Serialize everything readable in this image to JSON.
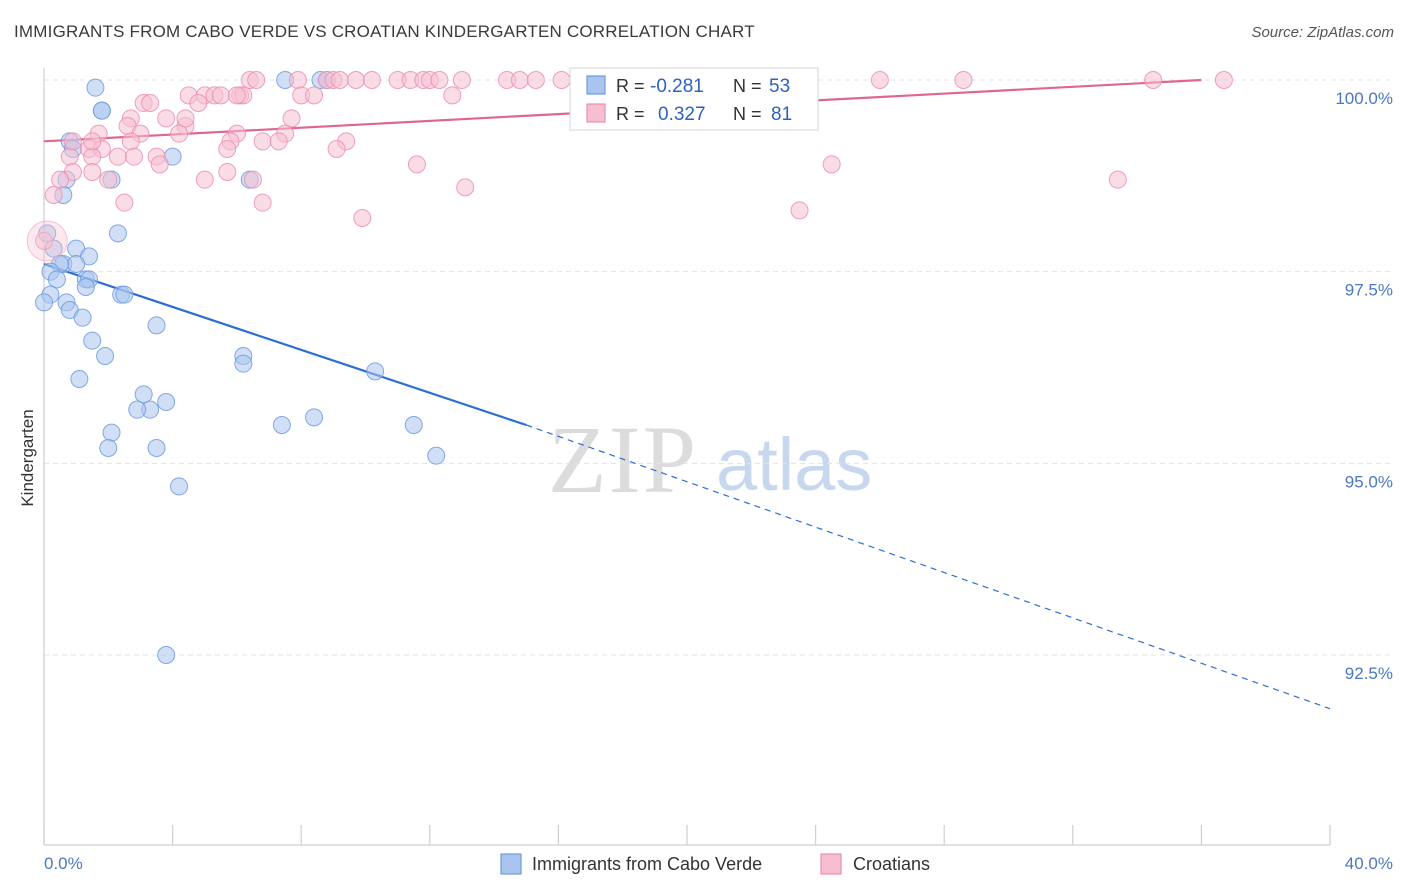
{
  "header": {
    "title": "IMMIGRANTS FROM CABO VERDE VS CROATIAN KINDERGARTEN CORRELATION CHART",
    "source": "Source: ZipAtlas.com"
  },
  "watermark": {
    "zip": "ZIP",
    "atlas": "atlas"
  },
  "colors": {
    "blue": "#6e9be0",
    "blue_fill": "#a9c4ee",
    "blue_line": "#2b6fd1",
    "pink": "#ec8fae",
    "pink_fill": "#f6bfd1",
    "pink_line": "#e06690",
    "tick_text": "#4a78c2",
    "grid": "#e3e3e3"
  },
  "legend_box": {
    "rows": [
      {
        "r_label": "R = ",
        "r_value": "-0.281",
        "n_label": "N = ",
        "n_value": "53"
      },
      {
        "r_label": "R = ",
        "r_value": "0.327",
        "n_label": "N = ",
        "n_value": "81"
      }
    ]
  },
  "chart_data": {
    "type": "scatter",
    "title": "IMMIGRANTS FROM CABO VERDE VS CROATIAN KINDERGARTEN CORRELATION CHART",
    "xlabel": "",
    "ylabel": "Kindergarten",
    "xlim": [
      0,
      40
    ],
    "ylim": [
      90.5,
      100.5
    ],
    "x_ticks": [
      0,
      4,
      8,
      12,
      16,
      20,
      24,
      28,
      32,
      36,
      40
    ],
    "x_tick_labels": {
      "first": "0.0%",
      "last": "40.0%"
    },
    "y_ticks": [
      92.5,
      95.0,
      97.5,
      100.0
    ],
    "y_tick_labels": [
      "92.5%",
      "95.0%",
      "97.5%",
      "100.0%"
    ],
    "grid": true,
    "legend_position": "bottom-center",
    "series": [
      {
        "name": "Immigrants from Cabo Verde",
        "color": "blue",
        "R": -0.281,
        "N": 53,
        "trend": {
          "x_start": 0,
          "y_start": 97.6,
          "x_solid_end": 15.0,
          "y_solid_end": 95.5,
          "x_dash_end": 40,
          "y_dash_end": 91.8
        },
        "points": [
          [
            1.6,
            99.9
          ],
          [
            7.5,
            100.0
          ],
          [
            8.6,
            100.0
          ],
          [
            8.8,
            100.0
          ],
          [
            1.8,
            99.6
          ],
          [
            1.8,
            99.6
          ],
          [
            0.8,
            99.2
          ],
          [
            0.9,
            99.1
          ],
          [
            4.0,
            99.0
          ],
          [
            0.7,
            98.7
          ],
          [
            2.1,
            98.7
          ],
          [
            6.4,
            98.7
          ],
          [
            0.6,
            98.5
          ],
          [
            0.1,
            98.0
          ],
          [
            2.3,
            98.0
          ],
          [
            0.3,
            97.8
          ],
          [
            1.0,
            97.8
          ],
          [
            1.4,
            97.7
          ],
          [
            0.6,
            97.6
          ],
          [
            1.0,
            97.6
          ],
          [
            0.5,
            97.6
          ],
          [
            0.2,
            97.5
          ],
          [
            0.4,
            97.4
          ],
          [
            1.3,
            97.4
          ],
          [
            1.4,
            97.4
          ],
          [
            1.3,
            97.3
          ],
          [
            2.4,
            97.2
          ],
          [
            2.5,
            97.2
          ],
          [
            0.2,
            97.2
          ],
          [
            0.7,
            97.1
          ],
          [
            0.0,
            97.1
          ],
          [
            0.8,
            97.0
          ],
          [
            1.2,
            96.9
          ],
          [
            3.5,
            96.8
          ],
          [
            1.5,
            96.6
          ],
          [
            1.9,
            96.4
          ],
          [
            6.2,
            96.4
          ],
          [
            6.2,
            96.3
          ],
          [
            10.3,
            96.2
          ],
          [
            1.1,
            96.1
          ],
          [
            3.1,
            95.9
          ],
          [
            3.3,
            95.7
          ],
          [
            3.8,
            95.8
          ],
          [
            2.9,
            95.7
          ],
          [
            2.1,
            95.4
          ],
          [
            7.4,
            95.5
          ],
          [
            8.4,
            95.6
          ],
          [
            11.5,
            95.5
          ],
          [
            2.0,
            95.2
          ],
          [
            3.5,
            95.2
          ],
          [
            12.2,
            95.1
          ],
          [
            4.2,
            94.7
          ],
          [
            3.8,
            92.5
          ]
        ]
      },
      {
        "name": "Croatians",
        "color": "pink",
        "R": 0.327,
        "N": 81,
        "trend": {
          "x_start": 0,
          "y_start": 99.2,
          "x_end": 36,
          "y_end": 100.0
        },
        "points": [
          [
            6.4,
            100.0
          ],
          [
            6.6,
            100.0
          ],
          [
            7.9,
            100.0
          ],
          [
            8.8,
            100.0
          ],
          [
            9.0,
            100.0
          ],
          [
            9.2,
            100.0
          ],
          [
            9.7,
            100.0
          ],
          [
            10.2,
            100.0
          ],
          [
            11.0,
            100.0
          ],
          [
            11.4,
            100.0
          ],
          [
            11.8,
            100.0
          ],
          [
            12.0,
            100.0
          ],
          [
            12.3,
            100.0
          ],
          [
            13.0,
            100.0
          ],
          [
            14.4,
            100.0
          ],
          [
            14.8,
            100.0
          ],
          [
            15.3,
            100.0
          ],
          [
            16.1,
            100.0
          ],
          [
            22.6,
            100.0
          ],
          [
            26.0,
            100.0
          ],
          [
            28.6,
            100.0
          ],
          [
            34.5,
            100.0
          ],
          [
            36.7,
            100.0
          ],
          [
            4.5,
            99.8
          ],
          [
            5.0,
            99.8
          ],
          [
            5.3,
            99.8
          ],
          [
            5.5,
            99.8
          ],
          [
            6.1,
            99.8
          ],
          [
            6.2,
            99.8
          ],
          [
            8.0,
            99.8
          ],
          [
            8.4,
            99.8
          ],
          [
            12.7,
            99.8
          ],
          [
            3.1,
            99.7
          ],
          [
            3.3,
            99.7
          ],
          [
            4.8,
            99.7
          ],
          [
            2.7,
            99.5
          ],
          [
            3.8,
            99.5
          ],
          [
            7.7,
            99.5
          ],
          [
            2.6,
            99.4
          ],
          [
            4.4,
            99.4
          ],
          [
            1.7,
            99.3
          ],
          [
            7.5,
            99.3
          ],
          [
            6.0,
            99.3
          ],
          [
            3.0,
            99.3
          ],
          [
            2.7,
            99.2
          ],
          [
            4.2,
            99.3
          ],
          [
            5.8,
            99.2
          ],
          [
            6.8,
            99.2
          ],
          [
            9.4,
            99.2
          ],
          [
            7.3,
            99.2
          ],
          [
            1.4,
            99.1
          ],
          [
            9.1,
            99.1
          ],
          [
            1.8,
            99.1
          ],
          [
            5.7,
            99.1
          ],
          [
            2.3,
            99.0
          ],
          [
            1.5,
            99.0
          ],
          [
            3.5,
            99.0
          ],
          [
            0.8,
            99.0
          ],
          [
            3.6,
            98.9
          ],
          [
            11.6,
            98.9
          ],
          [
            24.5,
            98.9
          ],
          [
            5.7,
            98.8
          ],
          [
            0.9,
            98.8
          ],
          [
            1.5,
            98.8
          ],
          [
            0.5,
            98.7
          ],
          [
            5.0,
            98.7
          ],
          [
            2.0,
            98.7
          ],
          [
            6.5,
            98.7
          ],
          [
            33.4,
            98.7
          ],
          [
            13.1,
            98.6
          ],
          [
            0.3,
            98.5
          ],
          [
            6.8,
            98.4
          ],
          [
            2.5,
            98.4
          ],
          [
            23.5,
            98.3
          ],
          [
            9.9,
            98.2
          ],
          [
            0.9,
            99.2
          ],
          [
            1.5,
            99.2
          ],
          [
            4.4,
            99.5
          ],
          [
            6.0,
            99.8
          ],
          [
            2.8,
            99.0
          ],
          [
            0.0,
            97.9
          ]
        ]
      }
    ]
  }
}
